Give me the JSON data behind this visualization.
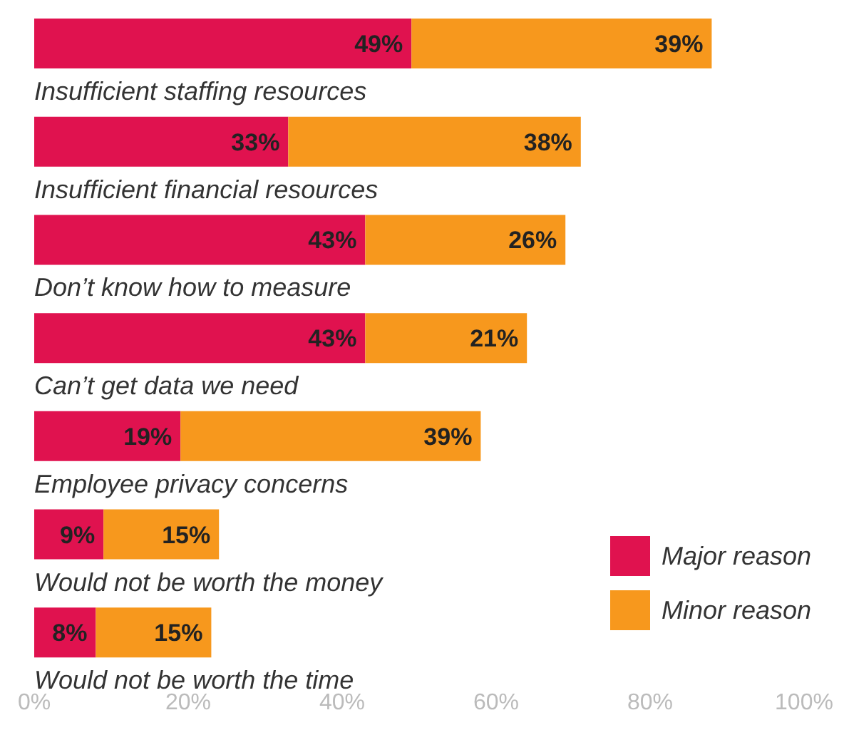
{
  "chart_data": {
    "type": "bar",
    "orientation": "horizontal",
    "stacked": true,
    "categories": [
      "Insufficient staffing resources",
      "Insufficient financial resources",
      "Don’t know how to measure",
      "Can’t get data we need",
      "Employee privacy concerns",
      "Would not be worth the money",
      "Would not be worth the time"
    ],
    "series": [
      {
        "name": "Major reason",
        "color": "#e0124f",
        "values": [
          49,
          33,
          43,
          43,
          19,
          9,
          8
        ],
        "value_labels": [
          "49%",
          "33%",
          "43%",
          "43%",
          "19%",
          "9%",
          "8%"
        ]
      },
      {
        "name": "Minor reason",
        "color": "#f7981d",
        "values": [
          39,
          38,
          26,
          21,
          39,
          15,
          15
        ],
        "value_labels": [
          "39%",
          "38%",
          "26%",
          "21%",
          "39%",
          "15%",
          "15%"
        ]
      }
    ],
    "xlim": [
      0,
      100
    ],
    "xticks": [
      {
        "value": 0,
        "label": "0%"
      },
      {
        "value": 20,
        "label": "20%"
      },
      {
        "value": 40,
        "label": "40%"
      },
      {
        "value": 60,
        "label": "60%"
      },
      {
        "value": 80,
        "label": "80%"
      },
      {
        "value": 100,
        "label": "100%"
      }
    ],
    "grid": false,
    "legend": "bottom right"
  }
}
